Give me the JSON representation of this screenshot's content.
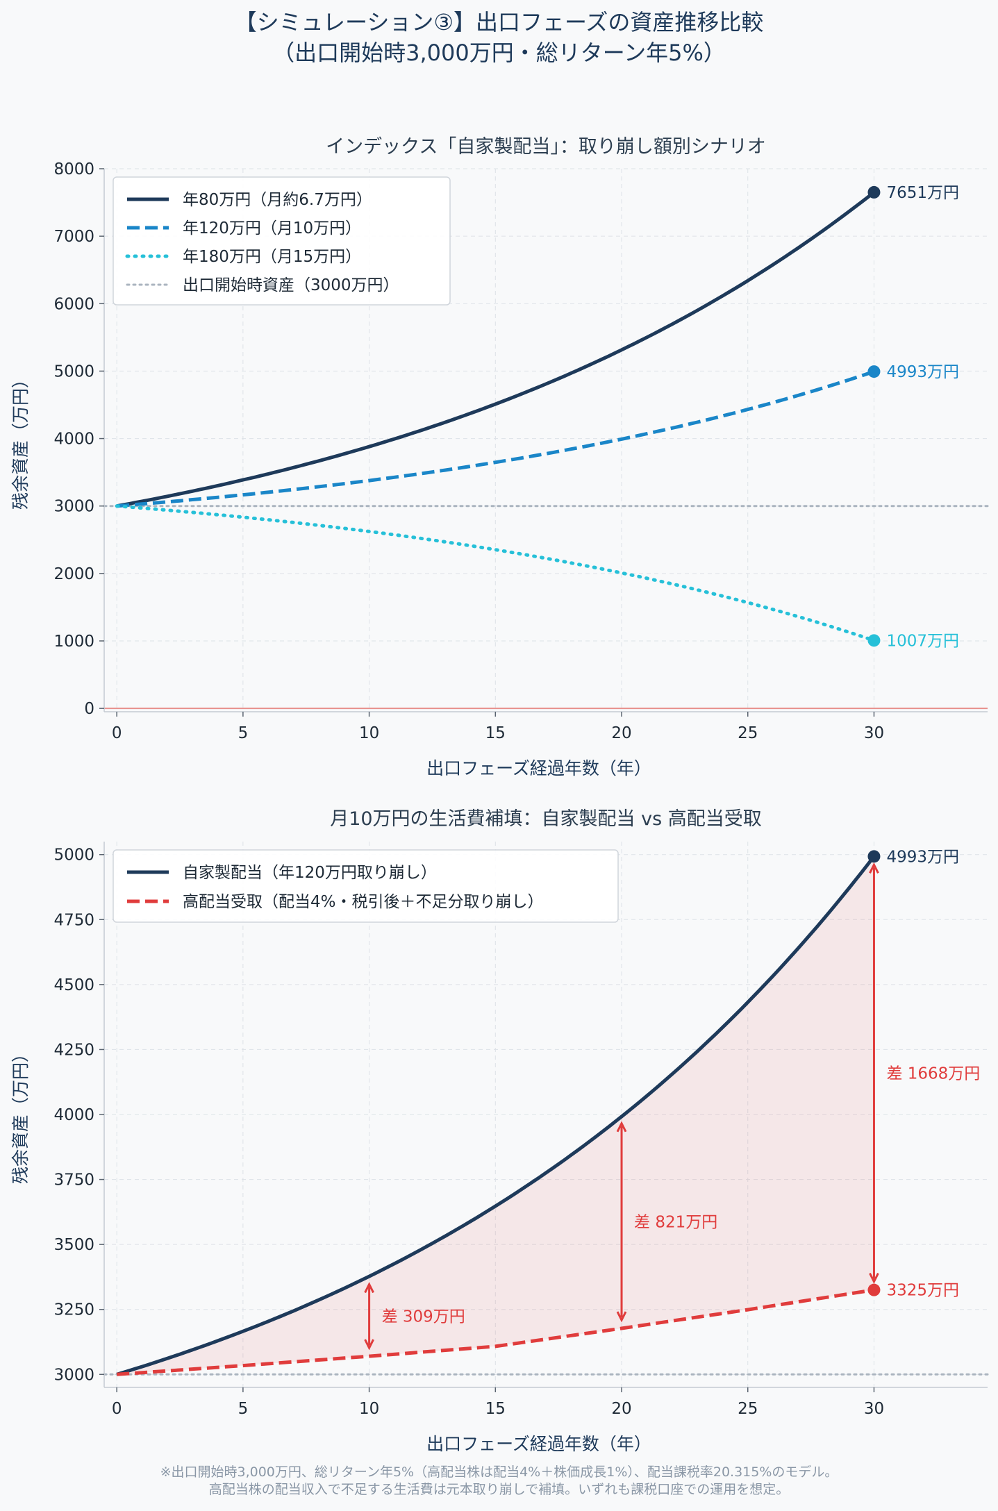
{
  "figure": {
    "title_line1": "【シミュレーション③】出口フェーズの資産推移比較",
    "title_line2": "（出口開始時3,000万円・総リターン年5%）",
    "footnote_line1": "※出口開始時3,000万円、総リターン年5%（高配当株は配当4%＋株価成長1%）、配当課税率20.315%のモデル。",
    "footnote_line2": "高配当株の配当収入で不足する生活費は元本取り崩しで補填。いずれも課税口座での運用を想定。"
  },
  "chart_data": [
    {
      "type": "line",
      "title": "インデックス「自家製配当」：取り崩し額別シナリオ",
      "xlabel": "出口フェーズ経過年数（年）",
      "ylabel": "残余資産（万円）",
      "xlim": [
        -0.5,
        34.5
      ],
      "ylim": [
        -50,
        8000
      ],
      "xticks": [
        0,
        5,
        10,
        15,
        20,
        25,
        30
      ],
      "yticks": [
        0,
        1000,
        2000,
        3000,
        4000,
        5000,
        6000,
        7000,
        8000
      ],
      "grid": true,
      "legend_position": "top-left",
      "zero_line_color": "#e8908c",
      "series": [
        {
          "name": "年80万円（月約6.7万円）",
          "color": "#1e3a5a",
          "dash": "solid",
          "start": 3000,
          "rate": 0.05,
          "withdraw": 80,
          "x": [
            0,
            5,
            10,
            15,
            20,
            25,
            30
          ],
          "values": [
            3000,
            3387,
            3882,
            4513,
            5318,
            6345,
            7651
          ],
          "end_label": "7651万円"
        },
        {
          "name": "年120万円（月10万円）",
          "color": "#1a86c8",
          "dash": "dashed",
          "start": 3000,
          "rate": 0.05,
          "withdraw": 120,
          "x": [
            0,
            5,
            10,
            15,
            20,
            25,
            30
          ],
          "values": [
            3000,
            3166,
            3379,
            3651,
            3998,
            4440,
            4993
          ],
          "end_label": "4993万円"
        },
        {
          "name": "年180万円（月15万円）",
          "color": "#26c0d8",
          "dash": "dotted",
          "start": 3000,
          "rate": 0.05,
          "withdraw": 180,
          "x": [
            0,
            5,
            10,
            15,
            20,
            25,
            30
          ],
          "values": [
            3000,
            2834,
            2623,
            2353,
            2009,
            1571,
            1007
          ],
          "end_label": "1007万円"
        },
        {
          "name": "出口開始時資産（3000万円）",
          "color": "#aab4bf",
          "dash": "dotted",
          "constant": 3000
        }
      ]
    },
    {
      "type": "line",
      "title": "月10万円の生活費補填：自家製配当 vs 高配当受取",
      "xlabel": "出口フェーズ経過年数（年）",
      "ylabel": "残余資産（万円）",
      "xlim": [
        -0.5,
        34.5
      ],
      "ylim": [
        2950,
        5050
      ],
      "xticks": [
        0,
        5,
        10,
        15,
        20,
        25,
        30
      ],
      "yticks": [
        3000,
        3250,
        3500,
        3750,
        4000,
        4250,
        4500,
        4750,
        5000
      ],
      "grid": true,
      "legend_position": "top-left",
      "shade_between": true,
      "baseline": 3000,
      "series": [
        {
          "name": "自家製配当（年120万円取り崩し）",
          "color": "#1e3a5a",
          "dash": "solid",
          "start": 3000,
          "rate": 0.05,
          "withdraw": 120,
          "x": [
            0,
            5,
            10,
            15,
            20,
            25,
            30
          ],
          "values": [
            3000,
            3166,
            3379,
            3651,
            3998,
            4440,
            4993
          ],
          "end_label": "4993万円"
        },
        {
          "name": "高配当受取（配当4%・税引後＋不足分取り崩し）",
          "color": "#e03c3c",
          "dash": "dashed",
          "x": [
            0,
            5,
            10,
            15,
            20,
            25,
            30
          ],
          "values": [
            3000,
            3034,
            3070,
            3108,
            3177,
            3249,
            3325
          ],
          "end_label": "3325万円"
        }
      ],
      "annotations": [
        {
          "x": 10,
          "top": 3379,
          "bottom": 3070,
          "text": "差 309万円"
        },
        {
          "x": 20,
          "top": 3998,
          "bottom": 3177,
          "text": "差 821万円"
        },
        {
          "x": 30,
          "top": 4993,
          "bottom": 3325,
          "text": "差 1668万円"
        }
      ]
    }
  ]
}
